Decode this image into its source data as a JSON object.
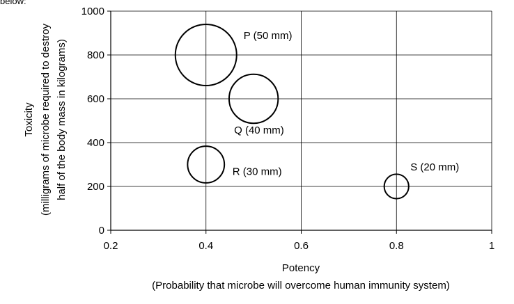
{
  "top_fragment": "below:",
  "chart_data": {
    "type": "scatter",
    "title": "",
    "xlabel": "Potency",
    "xlabel_sub": "(Probability that microbe will overcome human immunity system)",
    "ylabel": "Toxicity",
    "ylabel_sub_1": "(milligrams of microbe required to destroy",
    "ylabel_sub_2": "half of the body mass in kilograms)",
    "xlim": [
      0.2,
      1
    ],
    "ylim": [
      0,
      1000
    ],
    "xticks": [
      "0.2",
      "0.4",
      "0.6",
      "0.8",
      "1"
    ],
    "yticks": [
      "0",
      "200",
      "400",
      "600",
      "800",
      "1000"
    ],
    "grid": true,
    "points": [
      {
        "label": "P (50 mm)",
        "x": 0.4,
        "y": 800,
        "size_mm": 50
      },
      {
        "label": "Q (40 mm)",
        "x": 0.5,
        "y": 600,
        "size_mm": 40
      },
      {
        "label": "R (30 mm)",
        "x": 0.4,
        "y": 300,
        "size_mm": 30
      },
      {
        "label": "S (20 mm)",
        "x": 0.8,
        "y": 200,
        "size_mm": 20
      }
    ]
  }
}
